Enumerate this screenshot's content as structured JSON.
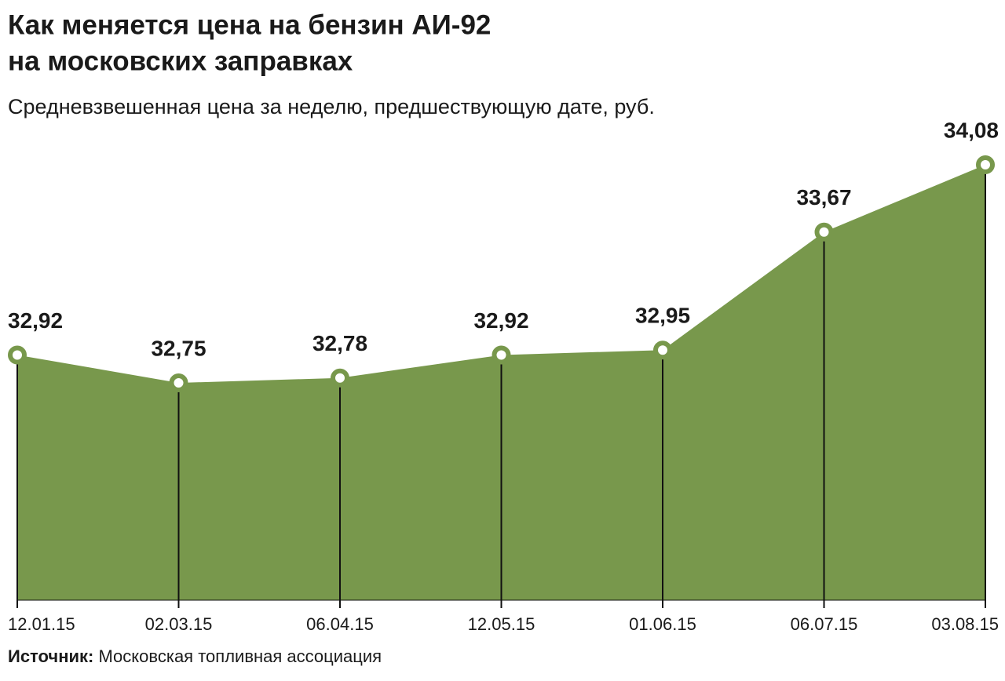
{
  "chart_data": {
    "type": "area",
    "title": [
      "Как меняется цена на бензин АИ-92",
      "на московских заправках"
    ],
    "subtitle": "Средневзвешенная цена за неделю, предшествующую дате, руб.",
    "categories": [
      "12.01.15",
      "02.03.15",
      "06.04.15",
      "12.05.15",
      "01.06.15",
      "06.07.15",
      "03.08.15"
    ],
    "values": [
      32.92,
      32.75,
      32.78,
      32.92,
      32.95,
      33.67,
      34.08
    ],
    "value_labels": [
      "32,92",
      "32,75",
      "32,78",
      "32,92",
      "32,95",
      "33,67",
      "34,08"
    ],
    "color": "#78984c",
    "source_label": "Источник:",
    "source": "Московская топливная ассоциация"
  }
}
